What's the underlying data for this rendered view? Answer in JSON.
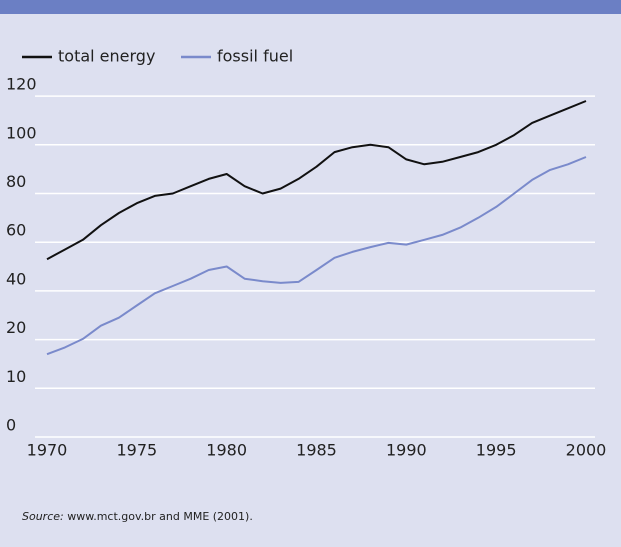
{
  "chart_data": {
    "type": "line",
    "x": [
      1970,
      1971,
      1972,
      1973,
      1974,
      1975,
      1976,
      1977,
      1978,
      1979,
      1980,
      1981,
      1982,
      1983,
      1984,
      1985,
      1986,
      1987,
      1988,
      1989,
      1990,
      1991,
      1992,
      1993,
      1994,
      1995,
      1996,
      1997,
      1998,
      1999,
      2000
    ],
    "series": [
      {
        "name": "total energy",
        "color": "#111111",
        "values": [
          53,
          57,
          61,
          67,
          72,
          76,
          79,
          80,
          83,
          86,
          88,
          83,
          80,
          82,
          86,
          91,
          97,
          99,
          100,
          99,
          94,
          92,
          93,
          95,
          97,
          100,
          104,
          109,
          112,
          115,
          118
        ]
      },
      {
        "name": "fossil fuel",
        "color": "#7a8acb",
        "values": [
          17,
          18.4,
          20.3,
          25.7,
          29,
          34,
          39,
          42,
          45,
          48.6,
          50,
          45,
          44,
          43.3,
          43.7,
          48.6,
          53.6,
          56,
          58,
          59.7,
          59,
          61,
          63,
          66,
          70,
          74.5,
          80,
          85.6,
          89.7,
          92,
          95
        ]
      }
    ],
    "xlim": [
      1970,
      2000
    ],
    "xticks": [
      1970,
      1975,
      1980,
      1985,
      1990,
      1995,
      2000
    ],
    "ylim": [
      0,
      120
    ],
    "yticks": [
      0,
      10,
      20,
      40,
      60,
      80,
      100,
      120
    ],
    "grid": true,
    "legend": "top-left",
    "source_label": "Source:",
    "source_text": " www.mct.gov.br and MME (2001)."
  }
}
